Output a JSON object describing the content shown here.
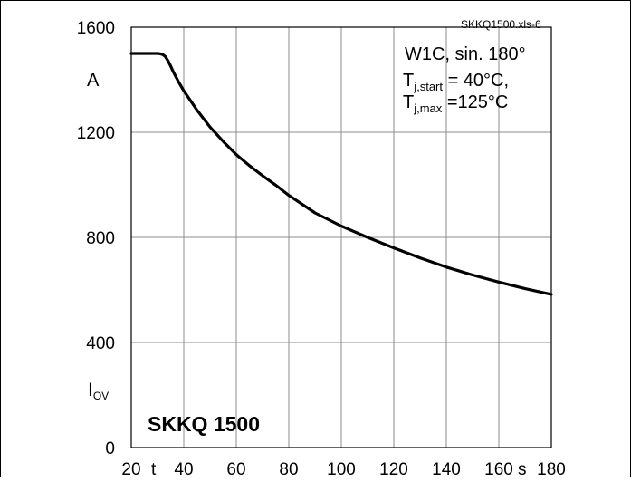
{
  "file_tag": "SKKQ1500.xls-6",
  "device_label": "SKKQ 1500",
  "conditions": {
    "line1": "W1C, sin. 180°",
    "line2_base": "T",
    "line2_sub": "j,start",
    "line2_rest": " = 40°C,",
    "line3_base": "T",
    "line3_sub": "j,max",
    "line3_rest": " =125°C"
  },
  "y_axis": {
    "unit": "A",
    "symbol": "I",
    "symbol_sub": "OV"
  },
  "x_axis": {
    "symbol": "t",
    "unit": "s"
  },
  "chart_data": {
    "type": "line",
    "xlim": [
      20,
      180
    ],
    "ylim": [
      0,
      1600
    ],
    "grid": true,
    "x_ticks": [
      20,
      40,
      60,
      80,
      100,
      120,
      140,
      160,
      180
    ],
    "y_ticks": [
      0,
      400,
      800,
      1200,
      1600
    ],
    "series": [
      {
        "x": [
          20,
          30,
          31,
          32,
          33,
          34,
          35,
          36,
          38,
          40,
          45,
          50,
          55,
          60,
          65,
          70,
          75,
          80,
          90,
          100,
          110,
          120,
          130,
          140,
          150,
          160,
          170,
          180
        ],
        "y": [
          1500,
          1500,
          1499,
          1496,
          1488,
          1472,
          1452,
          1430,
          1392,
          1358,
          1285,
          1220,
          1165,
          1115,
          1073,
          1035,
          999,
          960,
          893,
          843,
          800,
          760,
          722,
          687,
          657,
          630,
          605,
          583
        ]
      }
    ]
  }
}
